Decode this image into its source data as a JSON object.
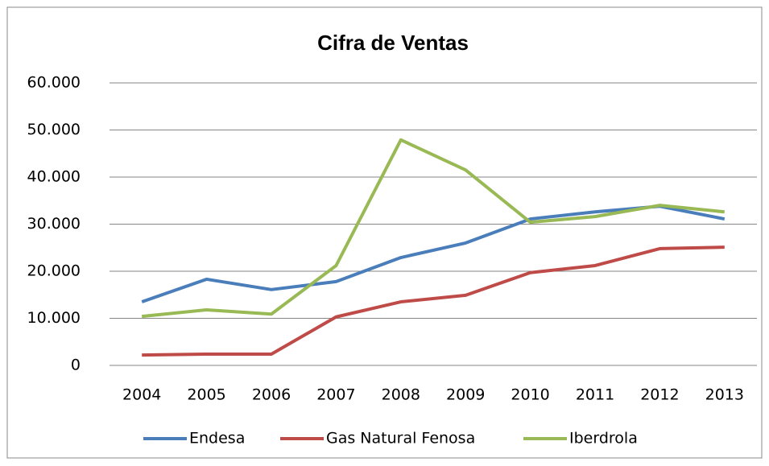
{
  "chart_data": {
    "type": "line",
    "title": "Cifra de Ventas",
    "categories": [
      "2004",
      "2005",
      "2006",
      "2007",
      "2008",
      "2009",
      "2010",
      "2011",
      "2012",
      "2013"
    ],
    "series": [
      {
        "name": "Endesa",
        "color": "#4a7ebb",
        "values": [
          13500,
          18300,
          16100,
          17800,
          22900,
          26000,
          31100,
          32600,
          33800,
          31100
        ]
      },
      {
        "name": "Gas Natural Fenosa",
        "color": "#be4b48",
        "values": [
          2200,
          2400,
          2400,
          10300,
          13500,
          14900,
          19700,
          21200,
          24800,
          25100
        ]
      },
      {
        "name": "Iberdrola",
        "color": "#98b954",
        "values": [
          10400,
          11800,
          10900,
          21200,
          47900,
          41500,
          30400,
          31600,
          34000,
          32600
        ]
      }
    ],
    "ylim": [
      0,
      60000
    ],
    "yticks": [
      0,
      {
        "value": 10000,
        "label": "10.000"
      },
      {
        "value": 20000,
        "label": "20.000"
      },
      {
        "value": 30000,
        "label": "30.000"
      },
      {
        "value": 40000,
        "label": "40.000"
      },
      {
        "value": 50000,
        "label": "50.000"
      },
      {
        "value": 60000,
        "label": "60.000"
      }
    ],
    "grid": true,
    "legend": "bottom"
  }
}
